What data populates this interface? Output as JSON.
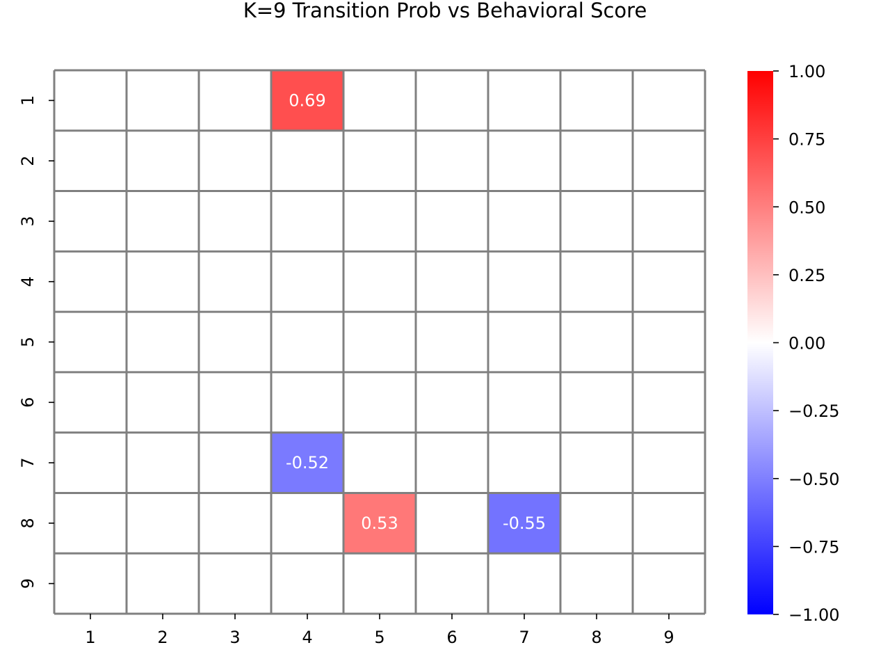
{
  "chart_data": {
    "type": "heatmap",
    "title": "K=9 Transition Prob vs Behavioral Score",
    "xlabel": "",
    "ylabel": "",
    "x_labels": [
      "1",
      "2",
      "3",
      "4",
      "5",
      "6",
      "7",
      "8",
      "9"
    ],
    "y_labels": [
      "1",
      "2",
      "3",
      "4",
      "5",
      "6",
      "7",
      "8",
      "9"
    ],
    "values": [
      [
        0,
        0,
        0,
        0.69,
        0,
        0,
        0,
        0,
        0
      ],
      [
        0,
        0,
        0,
        0,
        0,
        0,
        0,
        0,
        0
      ],
      [
        0,
        0,
        0,
        0,
        0,
        0,
        0,
        0,
        0
      ],
      [
        0,
        0,
        0,
        0,
        0,
        0,
        0,
        0,
        0
      ],
      [
        0,
        0,
        0,
        0,
        0,
        0,
        0,
        0,
        0
      ],
      [
        0,
        0,
        0,
        0,
        0,
        0,
        0,
        0,
        0
      ],
      [
        0,
        0,
        0,
        -0.52,
        0,
        0,
        0,
        0,
        0
      ],
      [
        0,
        0,
        0,
        0,
        0.53,
        0,
        -0.55,
        0,
        0
      ],
      [
        0,
        0,
        0,
        0,
        0,
        0,
        0,
        0,
        0
      ]
    ],
    "annotations": [
      {
        "row": 0,
        "col": 3,
        "text": "0.69"
      },
      {
        "row": 6,
        "col": 3,
        "text": "-0.52"
      },
      {
        "row": 7,
        "col": 4,
        "text": "0.53"
      },
      {
        "row": 7,
        "col": 6,
        "text": "-0.55"
      }
    ],
    "colorbar": {
      "range": [
        -1,
        1
      ],
      "ticks": [
        1.0,
        0.75,
        0.5,
        0.25,
        0.0,
        -0.25,
        -0.5,
        -0.75,
        -1.0
      ],
      "tick_labels": [
        "1.00",
        "0.75",
        "0.50",
        "0.25",
        "0.00",
        "−0.25",
        "−0.50",
        "−0.75",
        "−1.00"
      ],
      "colors": {
        "low": "#0000ff",
        "mid": "#ffffff",
        "high": "#ff0000"
      }
    },
    "grid_line_color": "#808080"
  }
}
